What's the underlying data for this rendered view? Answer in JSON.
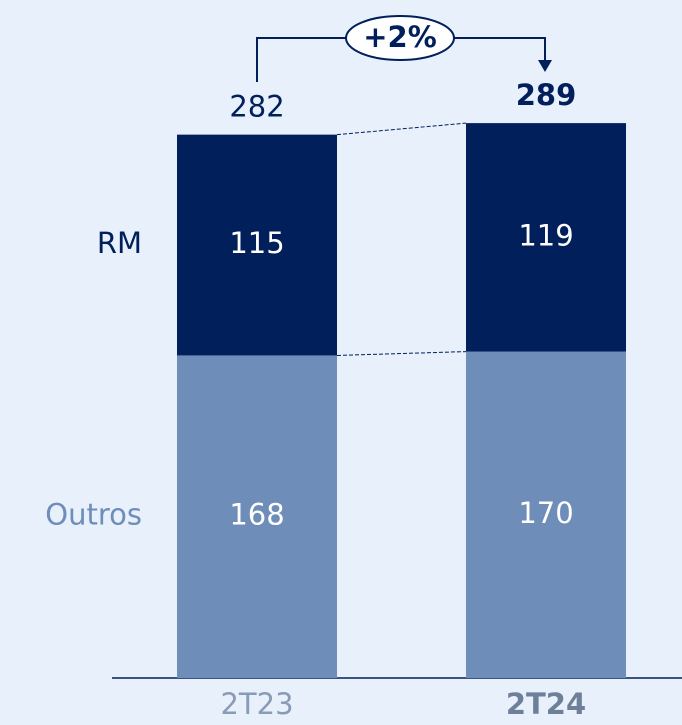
{
  "chart_data": {
    "type": "stacked_bar",
    "categories": [
      "2T23",
      "2T24"
    ],
    "series": [
      {
        "name": "Outros",
        "color": "#6e8db9",
        "values": [
          168,
          170
        ]
      },
      {
        "name": "RM",
        "color": "#001f5b",
        "values": [
          115,
          119
        ]
      }
    ],
    "totals": [
      282,
      289
    ],
    "annotation": "+2%"
  }
}
